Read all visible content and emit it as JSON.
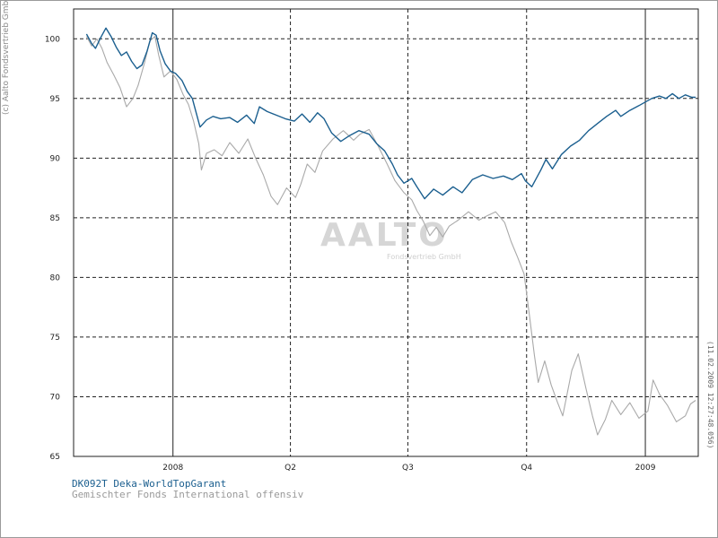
{
  "copyright": "(c) Aalto Fondsvertrieb GmbH",
  "timestamp": "(11.02.2009 12:27:48.056)",
  "watermark": {
    "main": "AALTO",
    "sub": "Fondsvertrieb GmbH"
  },
  "colors": {
    "fund": "#1b5f8f",
    "benchmark": "#a9a9a9",
    "grid": "#222222"
  },
  "legend": [
    {
      "label": "DK092T Deka-WorldTopGarant",
      "color": "#1b5f8f"
    },
    {
      "label": "Gemischter Fonds International offensiv",
      "color": "#9a9a9a"
    }
  ],
  "chart_data": {
    "type": "line",
    "x_ticks": [
      "2008",
      "Q2",
      "Q3",
      "Q4",
      "2009"
    ],
    "y_ticks": [
      "65",
      "70",
      "75",
      "80",
      "85",
      "90",
      "95",
      "100"
    ],
    "ylim": [
      65,
      102.5
    ],
    "x_range": [
      "2007-10-16",
      "2009-02-11"
    ],
    "grid": true,
    "legend_position": "bottom-left",
    "series": [
      {
        "name": "DK092T Deka-WorldTopGarant",
        "color": "#1b5f8f",
        "points": [
          [
            "2007-10-26",
            100.4
          ],
          [
            "2007-10-30",
            99.6
          ],
          [
            "2007-11-02",
            99.2
          ],
          [
            "2007-11-06",
            100.1
          ],
          [
            "2007-11-10",
            100.9
          ],
          [
            "2007-11-14",
            100.2
          ],
          [
            "2007-11-18",
            99.3
          ],
          [
            "2007-11-22",
            98.6
          ],
          [
            "2007-11-26",
            98.9
          ],
          [
            "2007-11-30",
            98.1
          ],
          [
            "2007-12-04",
            97.5
          ],
          [
            "2007-12-08",
            97.8
          ],
          [
            "2007-12-12",
            99.0
          ],
          [
            "2007-12-16",
            100.5
          ],
          [
            "2007-12-19",
            100.3
          ],
          [
            "2007-12-22",
            99.0
          ],
          [
            "2007-12-26",
            97.9
          ],
          [
            "2007-12-30",
            97.3
          ],
          [
            "2008-01-03",
            97.1
          ],
          [
            "2008-01-08",
            96.5
          ],
          [
            "2008-01-12",
            95.6
          ],
          [
            "2008-01-16",
            95.0
          ],
          [
            "2008-01-19",
            93.8
          ],
          [
            "2008-01-22",
            92.6
          ],
          [
            "2008-01-27",
            93.2
          ],
          [
            "2008-02-01",
            93.5
          ],
          [
            "2008-02-07",
            93.3
          ],
          [
            "2008-02-14",
            93.4
          ],
          [
            "2008-02-20",
            93.0
          ],
          [
            "2008-02-27",
            93.6
          ],
          [
            "2008-03-04",
            92.9
          ],
          [
            "2008-03-08",
            94.3
          ],
          [
            "2008-03-14",
            93.9
          ],
          [
            "2008-03-21",
            93.6
          ],
          [
            "2008-03-28",
            93.3
          ],
          [
            "2008-04-04",
            93.1
          ],
          [
            "2008-04-10",
            93.7
          ],
          [
            "2008-04-16",
            93.0
          ],
          [
            "2008-04-22",
            93.8
          ],
          [
            "2008-04-27",
            93.3
          ],
          [
            "2008-05-03",
            92.1
          ],
          [
            "2008-05-10",
            91.4
          ],
          [
            "2008-05-17",
            91.9
          ],
          [
            "2008-05-24",
            92.3
          ],
          [
            "2008-06-01",
            92.0
          ],
          [
            "2008-06-07",
            91.2
          ],
          [
            "2008-06-13",
            90.6
          ],
          [
            "2008-06-19",
            89.5
          ],
          [
            "2008-06-23",
            88.6
          ],
          [
            "2008-06-28",
            87.9
          ],
          [
            "2008-07-04",
            88.3
          ],
          [
            "2008-07-08",
            87.6
          ],
          [
            "2008-07-14",
            86.6
          ],
          [
            "2008-07-21",
            87.4
          ],
          [
            "2008-07-28",
            86.9
          ],
          [
            "2008-08-05",
            87.6
          ],
          [
            "2008-08-12",
            87.1
          ],
          [
            "2008-08-20",
            88.2
          ],
          [
            "2008-08-28",
            88.6
          ],
          [
            "2008-09-05",
            88.3
          ],
          [
            "2008-09-13",
            88.5
          ],
          [
            "2008-09-20",
            88.2
          ],
          [
            "2008-09-27",
            88.7
          ],
          [
            "2008-09-30",
            88.1
          ],
          [
            "2008-10-05",
            87.6
          ],
          [
            "2008-10-12",
            89.0
          ],
          [
            "2008-10-16",
            89.9
          ],
          [
            "2008-10-21",
            89.1
          ],
          [
            "2008-10-28",
            90.3
          ],
          [
            "2008-11-04",
            91.0
          ],
          [
            "2008-11-11",
            91.5
          ],
          [
            "2008-11-18",
            92.3
          ],
          [
            "2008-11-25",
            92.9
          ],
          [
            "2008-12-02",
            93.5
          ],
          [
            "2008-12-09",
            94.0
          ],
          [
            "2008-12-13",
            93.5
          ],
          [
            "2008-12-20",
            94.0
          ],
          [
            "2008-12-27",
            94.4
          ],
          [
            "2009-01-01",
            94.7
          ],
          [
            "2009-01-06",
            95.0
          ],
          [
            "2009-01-12",
            95.2
          ],
          [
            "2009-01-17",
            95.0
          ],
          [
            "2009-01-22",
            95.4
          ],
          [
            "2009-01-27",
            95.0
          ],
          [
            "2009-02-01",
            95.3
          ],
          [
            "2009-02-06",
            95.1
          ],
          [
            "2009-02-09",
            95.1
          ]
        ]
      },
      {
        "name": "Gemischter Fonds International offensiv",
        "color": "#a9a9a9",
        "points": [
          [
            "2007-10-26",
            100.2
          ],
          [
            "2007-10-30",
            99.4
          ],
          [
            "2007-11-03",
            100.0
          ],
          [
            "2007-11-07",
            99.2
          ],
          [
            "2007-11-11",
            98.0
          ],
          [
            "2007-11-16",
            97.0
          ],
          [
            "2007-11-21",
            95.9
          ],
          [
            "2007-11-26",
            94.3
          ],
          [
            "2007-12-01",
            95.0
          ],
          [
            "2007-12-05",
            96.1
          ],
          [
            "2007-12-10",
            98.0
          ],
          [
            "2007-12-14",
            99.8
          ],
          [
            "2007-12-18",
            100.2
          ],
          [
            "2007-12-21",
            98.6
          ],
          [
            "2007-12-25",
            96.8
          ],
          [
            "2007-12-30",
            97.3
          ],
          [
            "2008-01-04",
            96.6
          ],
          [
            "2008-01-09",
            95.3
          ],
          [
            "2008-01-13",
            94.5
          ],
          [
            "2008-01-17",
            93.1
          ],
          [
            "2008-01-21",
            91.2
          ],
          [
            "2008-01-23",
            89.0
          ],
          [
            "2008-01-27",
            90.4
          ],
          [
            "2008-02-02",
            90.7
          ],
          [
            "2008-02-08",
            90.2
          ],
          [
            "2008-02-14",
            91.3
          ],
          [
            "2008-02-21",
            90.4
          ],
          [
            "2008-02-28",
            91.6
          ],
          [
            "2008-03-05",
            90.0
          ],
          [
            "2008-03-11",
            88.6
          ],
          [
            "2008-03-17",
            86.8
          ],
          [
            "2008-03-22",
            86.1
          ],
          [
            "2008-03-29",
            87.5
          ],
          [
            "2008-04-05",
            86.7
          ],
          [
            "2008-04-09",
            87.8
          ],
          [
            "2008-04-14",
            89.5
          ],
          [
            "2008-04-20",
            88.8
          ],
          [
            "2008-04-26",
            90.6
          ],
          [
            "2008-05-04",
            91.6
          ],
          [
            "2008-05-12",
            92.3
          ],
          [
            "2008-05-20",
            91.5
          ],
          [
            "2008-05-25",
            92.0
          ],
          [
            "2008-06-01",
            92.4
          ],
          [
            "2008-06-08",
            91.0
          ],
          [
            "2008-06-15",
            89.5
          ],
          [
            "2008-06-21",
            88.1
          ],
          [
            "2008-06-28",
            87.1
          ],
          [
            "2008-07-04",
            86.5
          ],
          [
            "2008-07-08",
            85.6
          ],
          [
            "2008-07-13",
            84.7
          ],
          [
            "2008-07-18",
            83.5
          ],
          [
            "2008-07-23",
            84.2
          ],
          [
            "2008-07-28",
            83.4
          ],
          [
            "2008-08-02",
            84.3
          ],
          [
            "2008-08-09",
            84.8
          ],
          [
            "2008-08-17",
            85.5
          ],
          [
            "2008-08-25",
            84.8
          ],
          [
            "2008-09-01",
            85.2
          ],
          [
            "2008-09-07",
            85.5
          ],
          [
            "2008-09-14",
            84.6
          ],
          [
            "2008-09-19",
            83.0
          ],
          [
            "2008-09-24",
            81.7
          ],
          [
            "2008-09-29",
            80.3
          ],
          [
            "2008-10-03",
            77.0
          ],
          [
            "2008-10-07",
            73.5
          ],
          [
            "2008-10-10",
            71.2
          ],
          [
            "2008-10-15",
            73.0
          ],
          [
            "2008-10-20",
            71.0
          ],
          [
            "2008-10-25",
            69.5
          ],
          [
            "2008-10-29",
            68.4
          ],
          [
            "2008-11-05",
            72.2
          ],
          [
            "2008-11-10",
            73.6
          ],
          [
            "2008-11-16",
            70.7
          ],
          [
            "2008-11-21",
            68.4
          ],
          [
            "2008-11-25",
            66.8
          ],
          [
            "2008-12-01",
            68.1
          ],
          [
            "2008-12-06",
            69.7
          ],
          [
            "2008-12-13",
            68.5
          ],
          [
            "2008-12-20",
            69.5
          ],
          [
            "2008-12-27",
            68.2
          ],
          [
            "2009-01-03",
            68.8
          ],
          [
            "2009-01-07",
            71.4
          ],
          [
            "2009-01-12",
            70.2
          ],
          [
            "2009-01-18",
            69.3
          ],
          [
            "2009-01-25",
            67.9
          ],
          [
            "2009-02-01",
            68.4
          ],
          [
            "2009-02-05",
            69.4
          ],
          [
            "2009-02-09",
            69.7
          ]
        ]
      }
    ]
  }
}
